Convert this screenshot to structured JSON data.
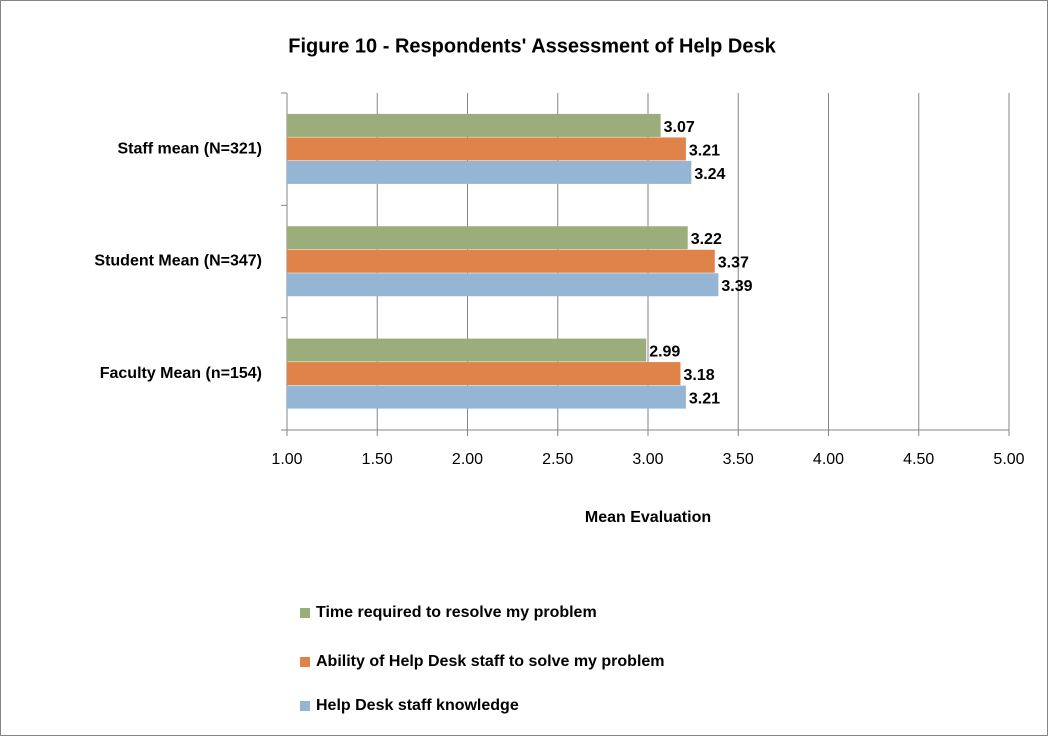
{
  "chart_data": {
    "type": "bar",
    "orientation": "horizontal",
    "title": "Figure 10 - Respondents' Assessment of Help Desk",
    "x_label": "Mean Evaluation",
    "categories": [
      "Staff mean (N=321)",
      "Student Mean (N=347)",
      "Faculty Mean (n=154)"
    ],
    "series": [
      {
        "name": "Time required to resolve my problem",
        "color": "#9bad7a",
        "values": [
          3.07,
          3.22,
          2.99
        ]
      },
      {
        "name": "Ability of Help Desk staff to solve my problem",
        "color": "#e0834b",
        "values": [
          3.21,
          3.37,
          3.18
        ]
      },
      {
        "name": "Help Desk staff knowledge",
        "color": "#94b6d4",
        "values": [
          3.24,
          3.39,
          3.21
        ]
      }
    ],
    "xlim": [
      1,
      5
    ],
    "xticks": [
      {
        "value": 1,
        "label": "1.00"
      },
      {
        "value": 1.5,
        "label": "1.50"
      },
      {
        "value": 2,
        "label": "2.00"
      },
      {
        "value": 2.5,
        "label": "2.50"
      },
      {
        "value": 3,
        "label": "3.00"
      },
      {
        "value": 3.5,
        "label": "3.50"
      },
      {
        "value": 4,
        "label": "4.00"
      },
      {
        "value": 4.5,
        "label": "4.50"
      },
      {
        "value": 5,
        "label": "5.00"
      }
    ],
    "grid": true,
    "legend": "bottom"
  }
}
